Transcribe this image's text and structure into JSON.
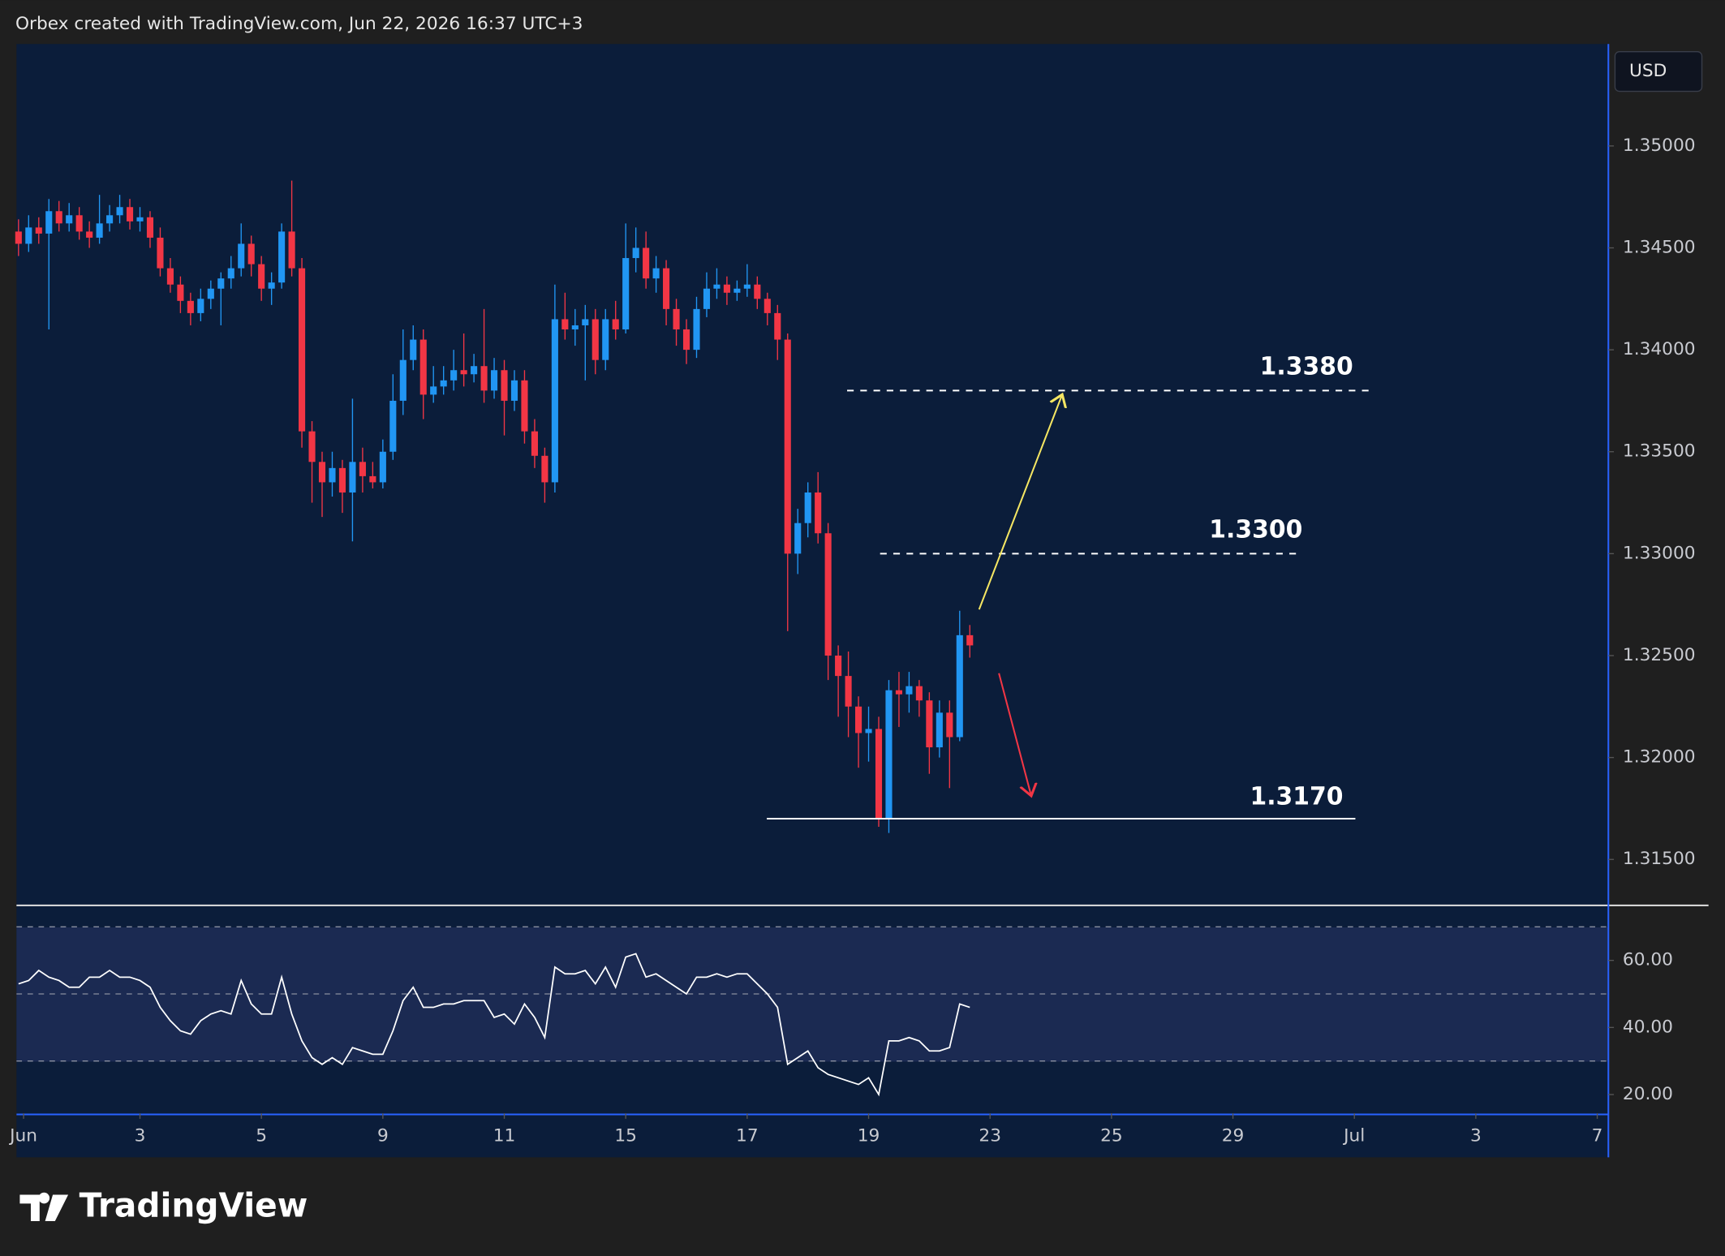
{
  "chart_data": {
    "type": "candlestick",
    "header": "Orbex created with TradingView.com, Jun 22, 2026 16:37 UTC+3",
    "currency": "USD",
    "brand": "TradingView",
    "up_color": "#2196f3",
    "down_color": "#f23645",
    "candles": [
      [
        1.3458,
        1.3464,
        1.3446,
        1.3452
      ],
      [
        1.3452,
        1.3466,
        1.3448,
        1.346
      ],
      [
        1.346,
        1.3465,
        1.3452,
        1.3457
      ],
      [
        1.3457,
        1.3474,
        1.341,
        1.3468
      ],
      [
        1.3468,
        1.3473,
        1.3458,
        1.3462
      ],
      [
        1.3462,
        1.3472,
        1.3458,
        1.3466
      ],
      [
        1.3466,
        1.347,
        1.3454,
        1.3458
      ],
      [
        1.3458,
        1.3463,
        1.345,
        1.3455
      ],
      [
        1.3455,
        1.3476,
        1.3452,
        1.3462
      ],
      [
        1.3462,
        1.3471,
        1.3458,
        1.3466
      ],
      [
        1.3466,
        1.3476,
        1.3462,
        1.347
      ],
      [
        1.347,
        1.3474,
        1.3459,
        1.3463
      ],
      [
        1.3463,
        1.347,
        1.3458,
        1.3465
      ],
      [
        1.3465,
        1.3468,
        1.345,
        1.3455
      ],
      [
        1.3455,
        1.346,
        1.3436,
        1.344
      ],
      [
        1.344,
        1.3445,
        1.3428,
        1.3432
      ],
      [
        1.3432,
        1.3436,
        1.3418,
        1.3424
      ],
      [
        1.3424,
        1.3428,
        1.3412,
        1.3418
      ],
      [
        1.3418,
        1.343,
        1.3414,
        1.3425
      ],
      [
        1.3425,
        1.3434,
        1.342,
        1.343
      ],
      [
        1.343,
        1.3438,
        1.3412,
        1.3435
      ],
      [
        1.3435,
        1.3446,
        1.343,
        1.344
      ],
      [
        1.344,
        1.3462,
        1.3436,
        1.3452
      ],
      [
        1.3452,
        1.3456,
        1.3436,
        1.3442
      ],
      [
        1.3442,
        1.3446,
        1.3424,
        1.343
      ],
      [
        1.343,
        1.3438,
        1.3422,
        1.3433
      ],
      [
        1.3433,
        1.3462,
        1.343,
        1.3458
      ],
      [
        1.3458,
        1.3483,
        1.3436,
        1.344
      ],
      [
        1.344,
        1.3445,
        1.3352,
        1.336
      ],
      [
        1.336,
        1.3365,
        1.3325,
        1.3345
      ],
      [
        1.3345,
        1.335,
        1.3318,
        1.3335
      ],
      [
        1.3335,
        1.335,
        1.3328,
        1.3342
      ],
      [
        1.3342,
        1.3346,
        1.332,
        1.333
      ],
      [
        1.333,
        1.3376,
        1.3306,
        1.3345
      ],
      [
        1.3345,
        1.3352,
        1.333,
        1.3338
      ],
      [
        1.3338,
        1.3345,
        1.3332,
        1.3335
      ],
      [
        1.3335,
        1.3356,
        1.3332,
        1.335
      ],
      [
        1.335,
        1.3388,
        1.3346,
        1.3375
      ],
      [
        1.3375,
        1.341,
        1.3368,
        1.3395
      ],
      [
        1.3395,
        1.3412,
        1.339,
        1.3405
      ],
      [
        1.3405,
        1.341,
        1.3366,
        1.3378
      ],
      [
        1.3378,
        1.3392,
        1.3374,
        1.3382
      ],
      [
        1.3382,
        1.3392,
        1.3378,
        1.3385
      ],
      [
        1.3385,
        1.34,
        1.338,
        1.339
      ],
      [
        1.339,
        1.3408,
        1.3382,
        1.3388
      ],
      [
        1.3388,
        1.3398,
        1.3384,
        1.3392
      ],
      [
        1.3392,
        1.342,
        1.3374,
        1.338
      ],
      [
        1.338,
        1.3396,
        1.3376,
        1.339
      ],
      [
        1.339,
        1.3395,
        1.3358,
        1.3375
      ],
      [
        1.3375,
        1.339,
        1.337,
        1.3385
      ],
      [
        1.3385,
        1.339,
        1.3354,
        1.336
      ],
      [
        1.336,
        1.3366,
        1.3342,
        1.3348
      ],
      [
        1.3348,
        1.3352,
        1.3325,
        1.3335
      ],
      [
        1.3335,
        1.3432,
        1.333,
        1.3415
      ],
      [
        1.3415,
        1.3428,
        1.3405,
        1.341
      ],
      [
        1.341,
        1.342,
        1.3402,
        1.3412
      ],
      [
        1.3412,
        1.3422,
        1.3385,
        1.3415
      ],
      [
        1.3415,
        1.342,
        1.3388,
        1.3395
      ],
      [
        1.3395,
        1.342,
        1.339,
        1.3415
      ],
      [
        1.3415,
        1.3424,
        1.3405,
        1.341
      ],
      [
        1.341,
        1.3462,
        1.3408,
        1.3445
      ],
      [
        1.3445,
        1.346,
        1.3438,
        1.345
      ],
      [
        1.345,
        1.3458,
        1.343,
        1.3435
      ],
      [
        1.3435,
        1.3446,
        1.3428,
        1.344
      ],
      [
        1.344,
        1.3444,
        1.3412,
        1.342
      ],
      [
        1.342,
        1.3425,
        1.3402,
        1.341
      ],
      [
        1.341,
        1.3415,
        1.3393,
        1.34
      ],
      [
        1.34,
        1.3426,
        1.3396,
        1.342
      ],
      [
        1.342,
        1.3438,
        1.3416,
        1.343
      ],
      [
        1.343,
        1.344,
        1.3425,
        1.3432
      ],
      [
        1.3432,
        1.3436,
        1.3422,
        1.3428
      ],
      [
        1.3428,
        1.3434,
        1.3424,
        1.343
      ],
      [
        1.343,
        1.3442,
        1.3426,
        1.3432
      ],
      [
        1.3432,
        1.3436,
        1.342,
        1.3425
      ],
      [
        1.3425,
        1.3428,
        1.3412,
        1.3418
      ],
      [
        1.3418,
        1.3422,
        1.3395,
        1.3405
      ],
      [
        1.3405,
        1.3408,
        1.3262,
        1.33
      ],
      [
        1.33,
        1.3322,
        1.329,
        1.3315
      ],
      [
        1.3315,
        1.3335,
        1.3308,
        1.333
      ],
      [
        1.333,
        1.334,
        1.3305,
        1.331
      ],
      [
        1.331,
        1.3315,
        1.3238,
        1.325
      ],
      [
        1.325,
        1.3255,
        1.322,
        1.324
      ],
      [
        1.324,
        1.3252,
        1.321,
        1.3225
      ],
      [
        1.3225,
        1.323,
        1.3195,
        1.3212
      ],
      [
        1.3212,
        1.3225,
        1.3198,
        1.3214
      ],
      [
        1.3214,
        1.322,
        1.3166,
        1.317
      ],
      [
        1.317,
        1.3238,
        1.3163,
        1.3233
      ],
      [
        1.3233,
        1.3242,
        1.3215,
        1.3231
      ],
      [
        1.3231,
        1.3242,
        1.3222,
        1.3235
      ],
      [
        1.3235,
        1.3238,
        1.322,
        1.3228
      ],
      [
        1.3228,
        1.3232,
        1.3192,
        1.3205
      ],
      [
        1.3205,
        1.3228,
        1.32,
        1.3222
      ],
      [
        1.3222,
        1.3228,
        1.3185,
        1.321
      ],
      [
        1.321,
        1.3272,
        1.3208,
        1.326
      ],
      [
        1.326,
        1.3265,
        1.3249,
        1.3255
      ]
    ],
    "xlim": [
      -0.2,
      157.1
    ],
    "xticks": [
      {
        "value": 0.5,
        "label": "Jun"
      },
      {
        "value": 12,
        "label": "3"
      },
      {
        "value": 24,
        "label": "5"
      },
      {
        "value": 36,
        "label": "9"
      },
      {
        "value": 48,
        "label": "11"
      },
      {
        "value": 60,
        "label": "15"
      },
      {
        "value": 72,
        "label": "17"
      },
      {
        "value": 84,
        "label": "19"
      },
      {
        "value": 96,
        "label": "23"
      },
      {
        "value": 108,
        "label": "25"
      },
      {
        "value": 120,
        "label": "29"
      },
      {
        "value": 132,
        "label": "Jul"
      },
      {
        "value": 144,
        "label": "3"
      },
      {
        "value": 156,
        "label": "7"
      }
    ],
    "ylim": [
      1.3128,
      1.355
    ],
    "yticks": [
      {
        "value": 1.35,
        "label": "1.35000"
      },
      {
        "value": 1.345,
        "label": "1.34500"
      },
      {
        "value": 1.34,
        "label": "1.34000"
      },
      {
        "value": 1.335,
        "label": "1.33500"
      },
      {
        "value": 1.33,
        "label": "1.33000"
      },
      {
        "value": 1.325,
        "label": "1.32500"
      },
      {
        "value": 1.32,
        "label": "1.32000"
      },
      {
        "value": 1.315,
        "label": "1.31500"
      }
    ],
    "levels": [
      {
        "value": 1.338,
        "label": "1.3380",
        "dashed": true
      },
      {
        "value": 1.33,
        "label": "1.3300",
        "dashed": true
      },
      {
        "value": 1.317,
        "label": "1.3170",
        "dashed": false
      }
    ],
    "rsi": {
      "values": [
        53,
        54,
        57,
        55,
        54,
        52,
        52,
        55,
        55,
        57,
        55,
        55,
        54,
        52,
        46,
        42,
        39,
        38,
        42,
        44,
        45,
        44,
        54,
        47,
        44,
        44,
        55,
        44,
        36,
        31,
        29,
        31,
        29,
        34,
        33,
        32,
        32,
        39,
        48,
        52,
        46,
        46,
        47,
        47,
        48,
        48,
        48,
        43,
        44,
        41,
        47,
        43,
        37,
        58,
        56,
        56,
        57,
        53,
        58,
        52,
        61,
        62,
        55,
        56,
        54,
        52,
        50,
        55,
        55,
        56,
        55,
        56,
        56,
        53,
        50,
        46,
        29,
        31,
        33,
        28,
        26,
        25,
        24,
        23,
        25,
        20,
        36,
        36,
        37,
        36,
        33,
        33,
        34,
        47,
        46
      ],
      "color": "#ffffff",
      "ylim": [
        14.4,
        76.4
      ],
      "yticks": [
        {
          "value": 60,
          "label": "60.00"
        },
        {
          "value": 40,
          "label": "40.00"
        },
        {
          "value": 20,
          "label": "20.00"
        }
      ],
      "bands": [
        70,
        50,
        30
      ]
    }
  }
}
